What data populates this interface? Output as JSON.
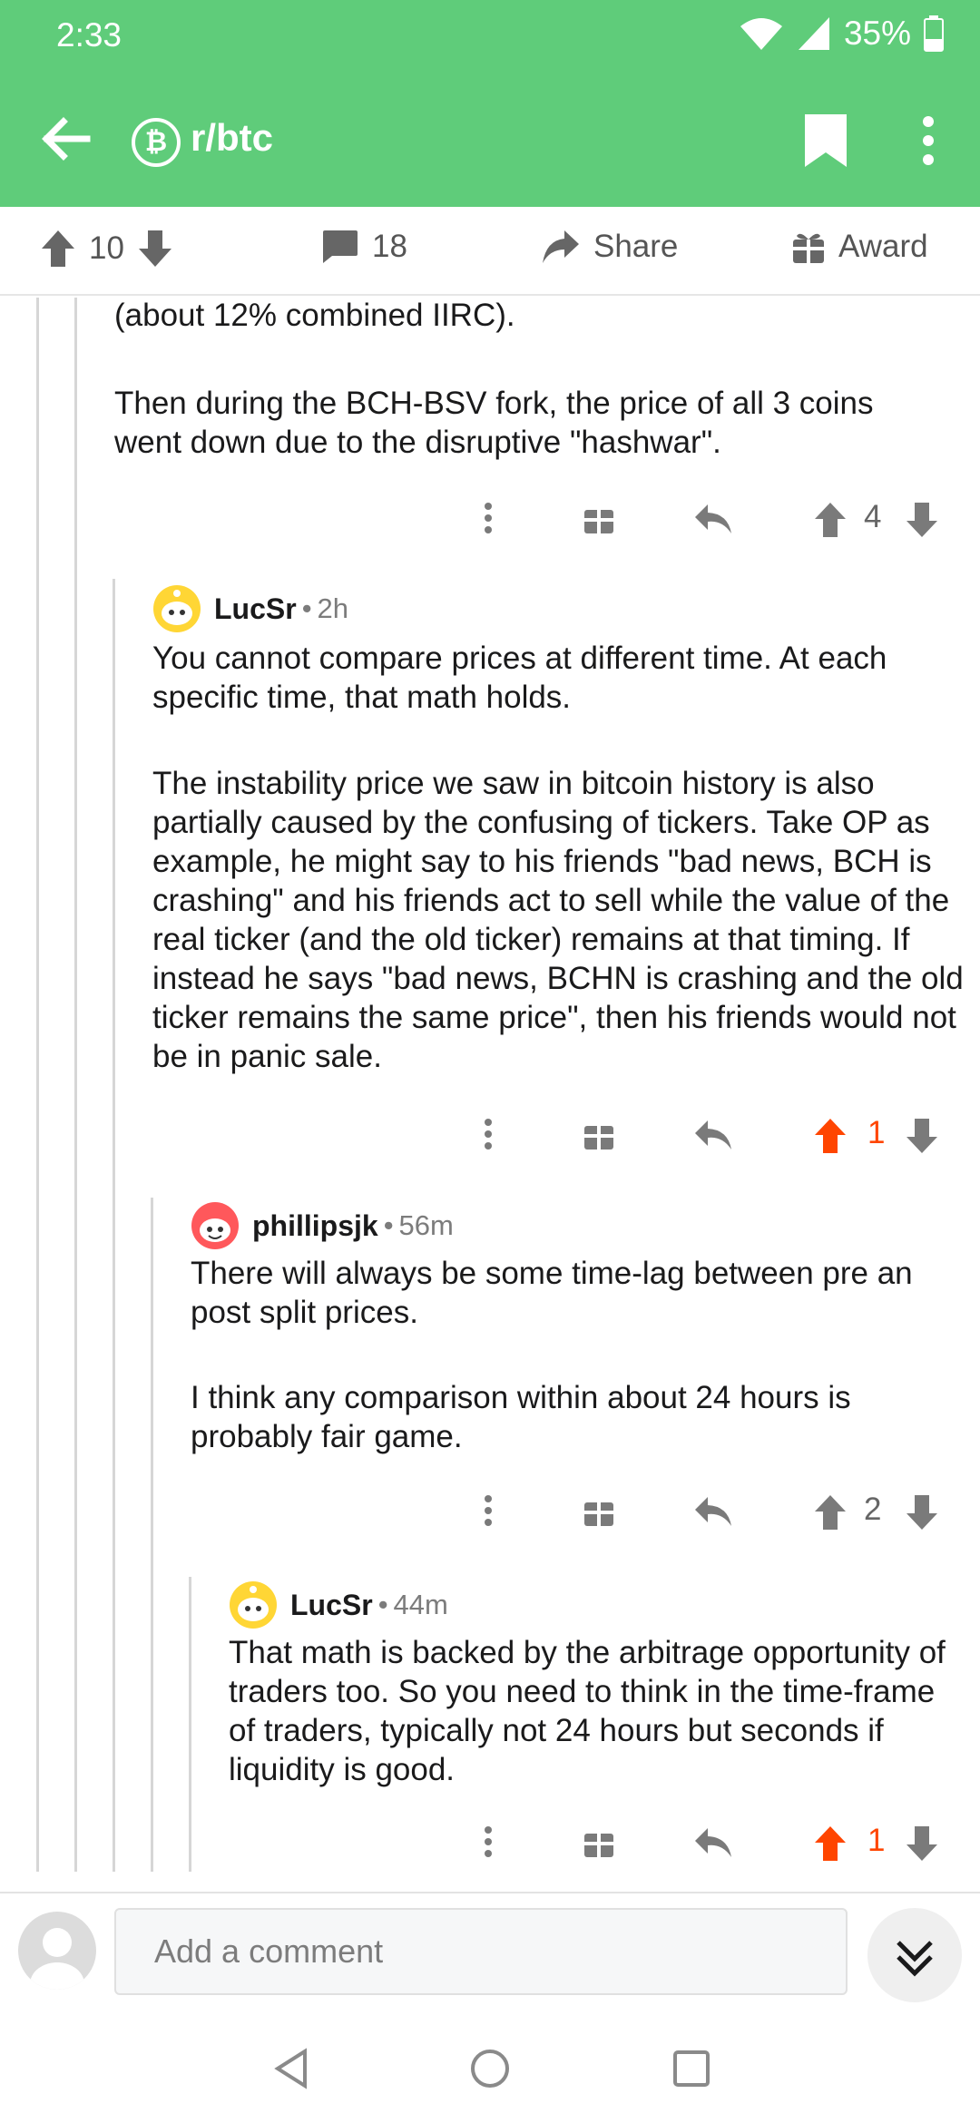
{
  "status_bar": {
    "time": "2:33",
    "battery": "35%"
  },
  "header": {
    "back_icon": "arrow-left-icon",
    "subreddit_icon": "bitcoin-icon",
    "subreddit_icon_glyph": "₿",
    "subreddit": "r/btc",
    "bookmark_icon": "bookmark-icon",
    "more_icon": "more-vert-icon",
    "color": "#5fcc7a"
  },
  "post_actions": {
    "upvotes": "10",
    "comments": "18",
    "share_label": "Share",
    "award_label": "Award"
  },
  "comments": [
    {
      "partial": true,
      "paragraphs": [
        "(about 12% combined IIRC).",
        "Then during the BCH-BSV fork, the price of all 3 coins went down due to the disruptive \"hashwar\"."
      ],
      "votes": "4",
      "upvoted": false
    },
    {
      "author": "LucSr",
      "time": "2h",
      "paragraphs": [
        "You cannot compare prices at different time.  At each specific time, that math holds.",
        "The instability price we saw in bitcoin history is also partially caused by the confusing of tickers.  Take OP as example, he might say to his friends \"bad news, BCH is crashing\" and his friends act to sell while the value of the real ticker (and the old ticker) remains at that timing.  If instead he says \"bad news, BCHN is crashing and the old ticker remains the same price\", then his friends would not be in panic sale."
      ],
      "votes": "1",
      "upvoted": true
    },
    {
      "author": "phillipsjk",
      "time": "56m",
      "paragraphs": [
        "There will always be some time-lag between pre an post split prices.",
        "I think any comparison within about 24 hours is probably fair game."
      ],
      "votes": "2",
      "upvoted": false
    },
    {
      "author": "LucSr",
      "time": "44m",
      "paragraphs": [
        "That math is backed by the arbitrage opportunity of traders too.  So you need to think in the time-frame of traders, typically not 24 hours but seconds if liquidity is good."
      ],
      "votes": "1",
      "upvoted": true
    }
  ],
  "comment_input": {
    "placeholder": "Add a comment"
  },
  "colors": {
    "upvote": "#ff4500",
    "icon_gray": "#7a7a7a",
    "thread_line": "#d6d6d6"
  }
}
